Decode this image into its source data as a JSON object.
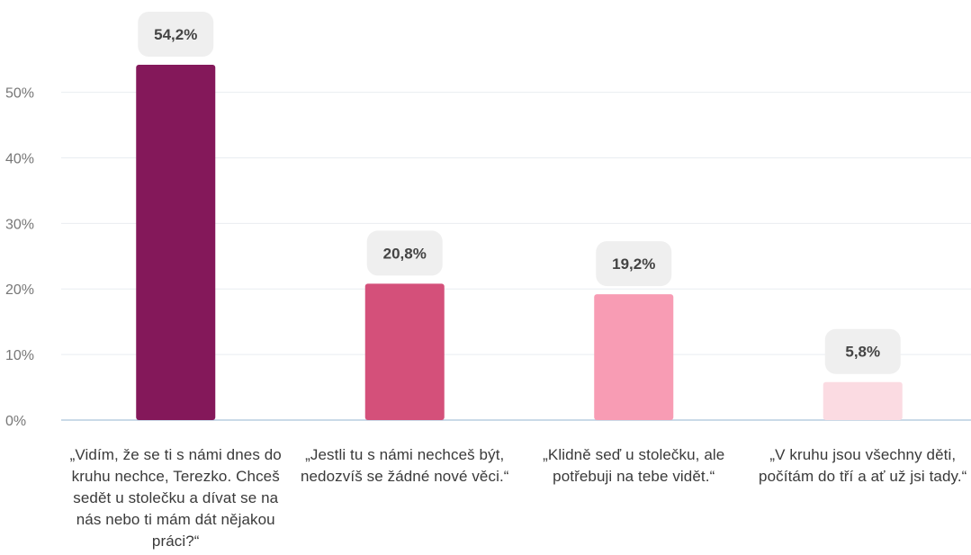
{
  "chart_data": {
    "type": "bar",
    "categories": [
      "„Vidím, že se ti s námi dnes do kruhu nechce, Terezko. Chceš sedět u stolečku a dívat se na nás nebo ti mám dát nějakou práci?“",
      "„Jestli tu s námi nechceš být, nedozvíš se žádné nové věci.“",
      "„Klidně seď u stolečku, ale potřebuji na tebe vidět.“",
      "„V kruhu jsou všechny děti, počítám do tří a ať už jsi tady.“"
    ],
    "values": [
      54.2,
      20.8,
      19.2,
      5.8
    ],
    "value_labels": [
      "54,2%",
      "20,8%",
      "19,2%",
      "5,8%"
    ],
    "yticks": [
      0,
      10,
      20,
      30,
      40,
      50
    ],
    "ytick_labels": [
      "0%",
      "10%",
      "20%",
      "30%",
      "40%",
      "50%"
    ],
    "ylim": [
      0,
      54.2
    ],
    "bar_colors": [
      "#84185a",
      "#d4507a",
      "#f89cb4",
      "#fbdbe2"
    ],
    "grid": true,
    "legend": "none",
    "title": "",
    "xlabel": "",
    "ylabel": ""
  }
}
